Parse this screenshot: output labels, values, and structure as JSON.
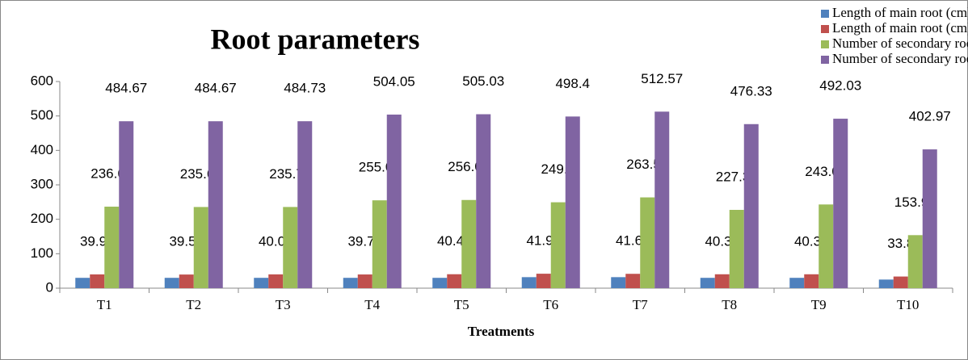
{
  "chart_data": {
    "type": "bar",
    "title": "Root parameters",
    "x_label": "Treatments",
    "categories": [
      "T1",
      "T2",
      "T3",
      "T4",
      "T5",
      "T6",
      "T7",
      "T8",
      "T9",
      "T10"
    ],
    "series": [
      {
        "name": "Length of main root (cm) Polyhouse",
        "color": "#4f81bd",
        "values": [
          30,
          30,
          30,
          30,
          30,
          32,
          32,
          30,
          30,
          25
        ],
        "show_labels": false
      },
      {
        "name": "Length of main root (cm) Open field",
        "color": "#c0504d",
        "values": [
          39.97,
          39.59,
          40.03,
          39.78,
          40.47,
          41.93,
          41.63,
          40.34,
          40.33,
          33.8
        ],
        "show_labels": true
      },
      {
        "name": "Number of secondary roots Polyhouse",
        "color": "#9bbb59",
        "values": [
          236.67,
          235.67,
          235.73,
          255.05,
          256.03,
          249.4,
          263.57,
          227.33,
          243.03,
          153.97
        ],
        "show_labels": true
      },
      {
        "name": "Number of secondary roots Open field",
        "color": "#8064a2",
        "values": [
          484.67,
          484.67,
          484.73,
          504.05,
          505.03,
          498.4,
          512.57,
          476.33,
          492.03,
          402.97
        ],
        "show_labels": true
      }
    ],
    "ylim": [
      0,
      600
    ],
    "yticks": [
      0,
      100,
      200,
      300,
      400,
      500,
      600
    ],
    "grid": false,
    "legend": "top-right"
  }
}
